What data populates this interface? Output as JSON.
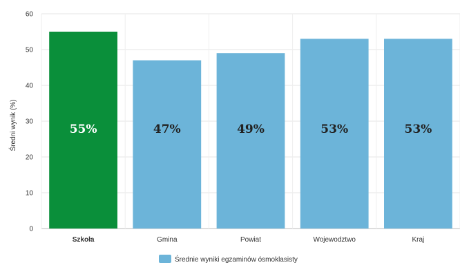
{
  "chart_data": {
    "type": "bar",
    "title": "",
    "xlabel": "",
    "ylabel": "Średni wynik (%)",
    "ylim": [
      0,
      60
    ],
    "yticks": [
      0,
      10,
      20,
      30,
      40,
      50,
      60
    ],
    "grid": true,
    "legend_position": "bottom",
    "categories": [
      "Szkoła",
      "Gmina",
      "Powiat",
      "Wojewodztwo",
      "Kraj"
    ],
    "series": [
      {
        "name": "Średnie wyniki egzaminów ósmoklasisty",
        "values": [
          55,
          47,
          49,
          53,
          53
        ],
        "data_labels": [
          "55%",
          "47%",
          "49%",
          "53%",
          "53%"
        ],
        "color": "#6cb4d9"
      }
    ],
    "highlight": {
      "category": "Szkoła",
      "color": "#0a8f3a"
    }
  }
}
